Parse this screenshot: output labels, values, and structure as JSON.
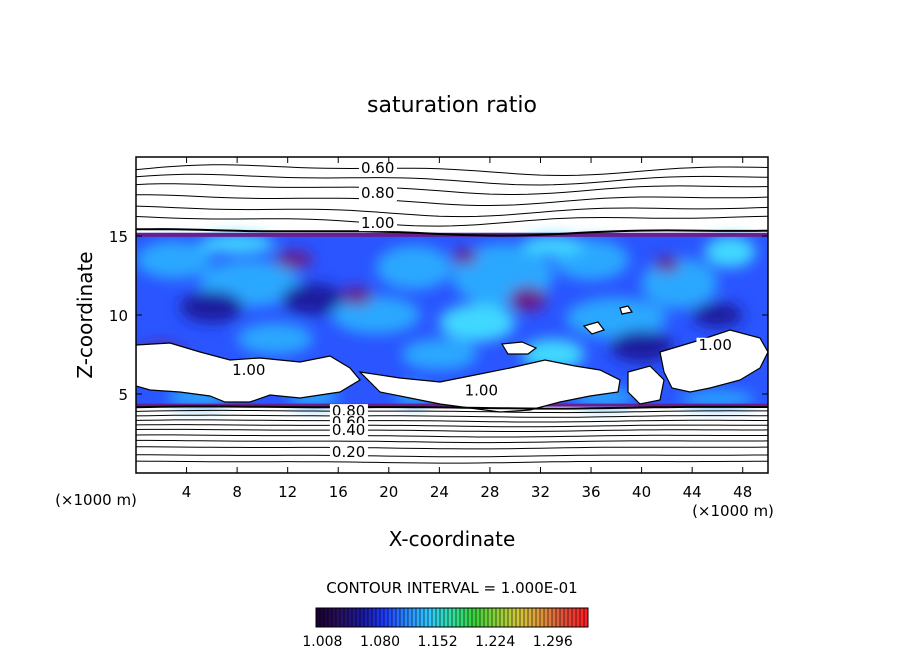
{
  "chart_data": {
    "type": "heatmap",
    "title": "saturation ratio",
    "xlabel": "X-coordinate",
    "ylabel": "Z-coordinate",
    "x_unit_left": "(×1000 m)",
    "x_unit_right": "(×1000 m)",
    "x_range": [
      0,
      50
    ],
    "y_range": [
      0,
      20
    ],
    "x_ticks": [
      4,
      8,
      12,
      16,
      20,
      24,
      28,
      32,
      36,
      40,
      44,
      48
    ],
    "y_ticks": [
      5,
      10,
      15
    ],
    "contour_interval_text": "CONTOUR INTERVAL = 1.000E-01",
    "contour_labels": [
      {
        "text": "0.60",
        "x": 17.8,
        "y": 19.0
      },
      {
        "text": "0.80",
        "x": 17.8,
        "y": 17.4
      },
      {
        "text": "1.00",
        "x": 17.8,
        "y": 15.5
      },
      {
        "text": "1.00",
        "x": 7.6,
        "y": 6.2
      },
      {
        "text": "1.00",
        "x": 26.0,
        "y": 4.9
      },
      {
        "text": "1.00",
        "x": 44.5,
        "y": 7.8
      },
      {
        "text": "0.80",
        "x": 15.5,
        "y": 3.6
      },
      {
        "text": "0.60",
        "x": 15.5,
        "y": 2.9
      },
      {
        "text": "0.40",
        "x": 15.5,
        "y": 2.4
      },
      {
        "text": "0.20",
        "x": 15.5,
        "y": 1.0
      }
    ],
    "colorbar": {
      "min": 1.0,
      "max": 1.34,
      "tick_labels": [
        "1.008",
        "1.080",
        "1.152",
        "1.224",
        "1.296"
      ],
      "colors": [
        "#1a0033",
        "#2a1060",
        "#1a1aa0",
        "#1e3cff",
        "#2a8cff",
        "#30c8ff",
        "#30e0a0",
        "#3ad23a",
        "#8cd23a",
        "#d2c83a",
        "#e0963a",
        "#e0503a",
        "#ff2020"
      ]
    },
    "cloud_band": {
      "z_bottom": 4.2,
      "z_top": 15.2
    },
    "field_colors": {
      "deep_purple": "#6b1f8c",
      "dark_blue": "#1d1a9e",
      "royal_blue": "#2a55ff",
      "light_blue": "#2aa8ff",
      "cyan": "#3fd8ff"
    }
  }
}
